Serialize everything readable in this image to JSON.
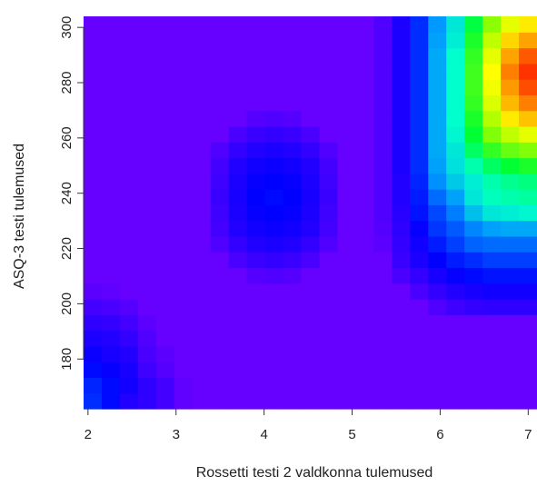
{
  "chart_data": {
    "type": "heatmap",
    "title": "",
    "xlabel": "Rossetti testi 2 valdkonna tulemused",
    "ylabel": "ASQ-3 testi tulemused",
    "xlim": [
      1.95,
      7.1
    ],
    "ylim": [
      162,
      304
    ],
    "x_ticks": [
      2,
      3,
      4,
      5,
      6,
      7
    ],
    "y_ticks": [
      180,
      200,
      220,
      240,
      260,
      280,
      300
    ],
    "grid": false,
    "legend": "none",
    "colormap": "rainbow (violet low → blue → cyan → green → yellow → orange → red high)",
    "x_bin_edges": [
      1.95,
      2.156,
      2.362,
      2.568,
      2.774,
      2.98,
      3.186,
      3.392,
      3.598,
      3.804,
      4.01,
      4.216,
      4.422,
      4.628,
      4.834,
      5.04,
      5.246,
      5.452,
      5.658,
      5.864,
      6.07,
      6.276,
      6.482,
      6.688,
      6.894,
      7.1
    ],
    "y_bin_edges": [
      162,
      167.68,
      173.36,
      179.04,
      184.72,
      190.4,
      196.08,
      201.76,
      207.44,
      213.12,
      218.8,
      224.48,
      230.16,
      235.84,
      241.52,
      247.2,
      252.88,
      258.56,
      264.24,
      269.92,
      275.6,
      281.28,
      286.96,
      292.64,
      298.32,
      304
    ],
    "z_range": [
      0,
      1
    ],
    "values_note": "rows listed from the lowest y bin (162) to the highest (304); columns from x=1.95 to 7.1",
    "values": [
      [
        0.23,
        0.19,
        0.12,
        0.1,
        0.06,
        0.01,
        0.0,
        0.0,
        0.0,
        0.0,
        0.0,
        0.0,
        0.0,
        0.0,
        0.0,
        0.0,
        0.0,
        0.0,
        0.0,
        0.0,
        0.0,
        0.0,
        0.0,
        0.0,
        0.0
      ],
      [
        0.22,
        0.19,
        0.15,
        0.1,
        0.06,
        0.01,
        0.0,
        0.0,
        0.0,
        0.0,
        0.0,
        0.0,
        0.0,
        0.0,
        0.0,
        0.0,
        0.0,
        0.0,
        0.0,
        0.0,
        0.0,
        0.0,
        0.0,
        0.0,
        0.0
      ],
      [
        0.19,
        0.17,
        0.14,
        0.07,
        0.03,
        0.0,
        0.0,
        0.0,
        0.0,
        0.0,
        0.0,
        0.0,
        0.0,
        0.0,
        0.0,
        0.0,
        0.0,
        0.0,
        0.0,
        0.0,
        0.0,
        0.0,
        0.0,
        0.0,
        0.0
      ],
      [
        0.16,
        0.14,
        0.12,
        0.05,
        0.02,
        0.0,
        0.0,
        0.0,
        0.0,
        0.0,
        0.0,
        0.0,
        0.0,
        0.0,
        0.0,
        0.0,
        0.0,
        0.0,
        0.0,
        0.0,
        0.0,
        0.0,
        0.0,
        0.0,
        0.0
      ],
      [
        0.13,
        0.12,
        0.09,
        0.04,
        0.0,
        0.0,
        0.0,
        0.0,
        0.0,
        0.0,
        0.0,
        0.0,
        0.0,
        0.0,
        0.0,
        0.0,
        0.0,
        0.0,
        0.0,
        0.0,
        0.0,
        0.0,
        0.0,
        0.0,
        0.0
      ],
      [
        0.1,
        0.09,
        0.06,
        0.02,
        0.0,
        0.0,
        0.0,
        0.0,
        0.0,
        0.0,
        0.0,
        0.0,
        0.0,
        0.0,
        0.0,
        0.0,
        0.0,
        0.0,
        0.0,
        0.0,
        0.0,
        0.0,
        0.0,
        0.0,
        0.0
      ],
      [
        0.06,
        0.05,
        0.03,
        0.0,
        0.0,
        0.0,
        0.0,
        0.0,
        0.0,
        0.0,
        0.0,
        0.0,
        0.0,
        0.0,
        0.0,
        0.0,
        0.0,
        0.0,
        0.0,
        0.04,
        0.07,
        0.09,
        0.1,
        0.1,
        0.1
      ],
      [
        0.02,
        0.01,
        0.0,
        0.0,
        0.0,
        0.0,
        0.0,
        0.0,
        0.0,
        0.0,
        0.0,
        0.0,
        0.0,
        0.0,
        0.0,
        0.0,
        0.0,
        0.0,
        0.05,
        0.09,
        0.12,
        0.14,
        0.15,
        0.15,
        0.15
      ],
      [
        0.0,
        0.0,
        0.0,
        0.0,
        0.0,
        0.0,
        0.0,
        0.0,
        0.0,
        0.03,
        0.04,
        0.03,
        0.0,
        0.0,
        0.0,
        0.0,
        0.0,
        0.05,
        0.09,
        0.14,
        0.17,
        0.19,
        0.2,
        0.2,
        0.2
      ],
      [
        0.0,
        0.0,
        0.0,
        0.0,
        0.0,
        0.0,
        0.0,
        0.0,
        0.05,
        0.08,
        0.09,
        0.08,
        0.05,
        0.0,
        0.0,
        0.0,
        0.0,
        0.08,
        0.13,
        0.18,
        0.21,
        0.23,
        0.25,
        0.25,
        0.25
      ],
      [
        0.0,
        0.0,
        0.0,
        0.0,
        0.0,
        0.0,
        0.0,
        0.04,
        0.09,
        0.12,
        0.13,
        0.12,
        0.09,
        0.04,
        0.0,
        0.0,
        0.02,
        0.09,
        0.15,
        0.21,
        0.25,
        0.29,
        0.3,
        0.3,
        0.3
      ],
      [
        0.0,
        0.0,
        0.0,
        0.0,
        0.0,
        0.0,
        0.0,
        0.06,
        0.12,
        0.15,
        0.16,
        0.15,
        0.12,
        0.06,
        0.0,
        0.0,
        0.03,
        0.1,
        0.17,
        0.24,
        0.28,
        0.33,
        0.36,
        0.37,
        0.37
      ],
      [
        0.0,
        0.0,
        0.0,
        0.0,
        0.0,
        0.0,
        0.0,
        0.07,
        0.13,
        0.17,
        0.18,
        0.17,
        0.13,
        0.07,
        0.0,
        0.0,
        0.04,
        0.11,
        0.2,
        0.26,
        0.32,
        0.4,
        0.45,
        0.46,
        0.47
      ],
      [
        0.0,
        0.0,
        0.0,
        0.0,
        0.0,
        0.0,
        0.0,
        0.08,
        0.14,
        0.18,
        0.19,
        0.18,
        0.14,
        0.08,
        0.0,
        0.0,
        0.04,
        0.12,
        0.21,
        0.3,
        0.36,
        0.45,
        0.49,
        0.5,
        0.51
      ],
      [
        0.0,
        0.0,
        0.0,
        0.0,
        0.0,
        0.0,
        0.0,
        0.07,
        0.13,
        0.17,
        0.18,
        0.17,
        0.13,
        0.07,
        0.0,
        0.0,
        0.04,
        0.12,
        0.22,
        0.34,
        0.41,
        0.46,
        0.5,
        0.52,
        0.53
      ],
      [
        0.0,
        0.0,
        0.0,
        0.0,
        0.0,
        0.0,
        0.0,
        0.06,
        0.12,
        0.15,
        0.16,
        0.15,
        0.12,
        0.06,
        0.0,
        0.0,
        0.04,
        0.13,
        0.23,
        0.36,
        0.44,
        0.5,
        0.55,
        0.58,
        0.6
      ],
      [
        0.0,
        0.0,
        0.0,
        0.0,
        0.0,
        0.0,
        0.0,
        0.04,
        0.09,
        0.12,
        0.13,
        0.12,
        0.09,
        0.04,
        0.0,
        0.0,
        0.04,
        0.13,
        0.23,
        0.37,
        0.45,
        0.55,
        0.62,
        0.66,
        0.68
      ],
      [
        0.0,
        0.0,
        0.0,
        0.0,
        0.0,
        0.0,
        0.0,
        0.0,
        0.05,
        0.08,
        0.09,
        0.08,
        0.05,
        0.0,
        0.0,
        0.0,
        0.04,
        0.13,
        0.23,
        0.37,
        0.47,
        0.58,
        0.68,
        0.73,
        0.76
      ],
      [
        0.0,
        0.0,
        0.0,
        0.0,
        0.0,
        0.0,
        0.0,
        0.0,
        0.0,
        0.03,
        0.04,
        0.03,
        0.0,
        0.0,
        0.0,
        0.0,
        0.04,
        0.13,
        0.23,
        0.37,
        0.48,
        0.6,
        0.72,
        0.8,
        0.84
      ],
      [
        0.0,
        0.0,
        0.0,
        0.0,
        0.0,
        0.0,
        0.0,
        0.0,
        0.0,
        0.0,
        0.0,
        0.0,
        0.0,
        0.0,
        0.0,
        0.0,
        0.04,
        0.13,
        0.23,
        0.37,
        0.48,
        0.62,
        0.75,
        0.85,
        0.9
      ],
      [
        0.0,
        0.0,
        0.0,
        0.0,
        0.0,
        0.0,
        0.0,
        0.0,
        0.0,
        0.0,
        0.0,
        0.0,
        0.0,
        0.0,
        0.0,
        0.0,
        0.04,
        0.13,
        0.23,
        0.37,
        0.48,
        0.63,
        0.77,
        0.88,
        0.94
      ],
      [
        0.0,
        0.0,
        0.0,
        0.0,
        0.0,
        0.0,
        0.0,
        0.0,
        0.0,
        0.0,
        0.0,
        0.0,
        0.0,
        0.0,
        0.0,
        0.0,
        0.04,
        0.13,
        0.23,
        0.37,
        0.48,
        0.63,
        0.78,
        0.9,
        0.96
      ],
      [
        0.0,
        0.0,
        0.0,
        0.0,
        0.0,
        0.0,
        0.0,
        0.0,
        0.0,
        0.0,
        0.0,
        0.0,
        0.0,
        0.0,
        0.0,
        0.0,
        0.04,
        0.13,
        0.23,
        0.37,
        0.48,
        0.62,
        0.76,
        0.87,
        0.93
      ],
      [
        0.0,
        0.0,
        0.0,
        0.0,
        0.0,
        0.0,
        0.0,
        0.0,
        0.0,
        0.0,
        0.0,
        0.0,
        0.0,
        0.0,
        0.0,
        0.0,
        0.04,
        0.13,
        0.23,
        0.36,
        0.46,
        0.6,
        0.73,
        0.82,
        0.87
      ],
      [
        0.0,
        0.0,
        0.0,
        0.0,
        0.0,
        0.0,
        0.0,
        0.0,
        0.0,
        0.0,
        0.0,
        0.0,
        0.0,
        0.0,
        0.0,
        0.0,
        0.04,
        0.13,
        0.23,
        0.35,
        0.45,
        0.57,
        0.69,
        0.76,
        0.8
      ]
    ]
  }
}
